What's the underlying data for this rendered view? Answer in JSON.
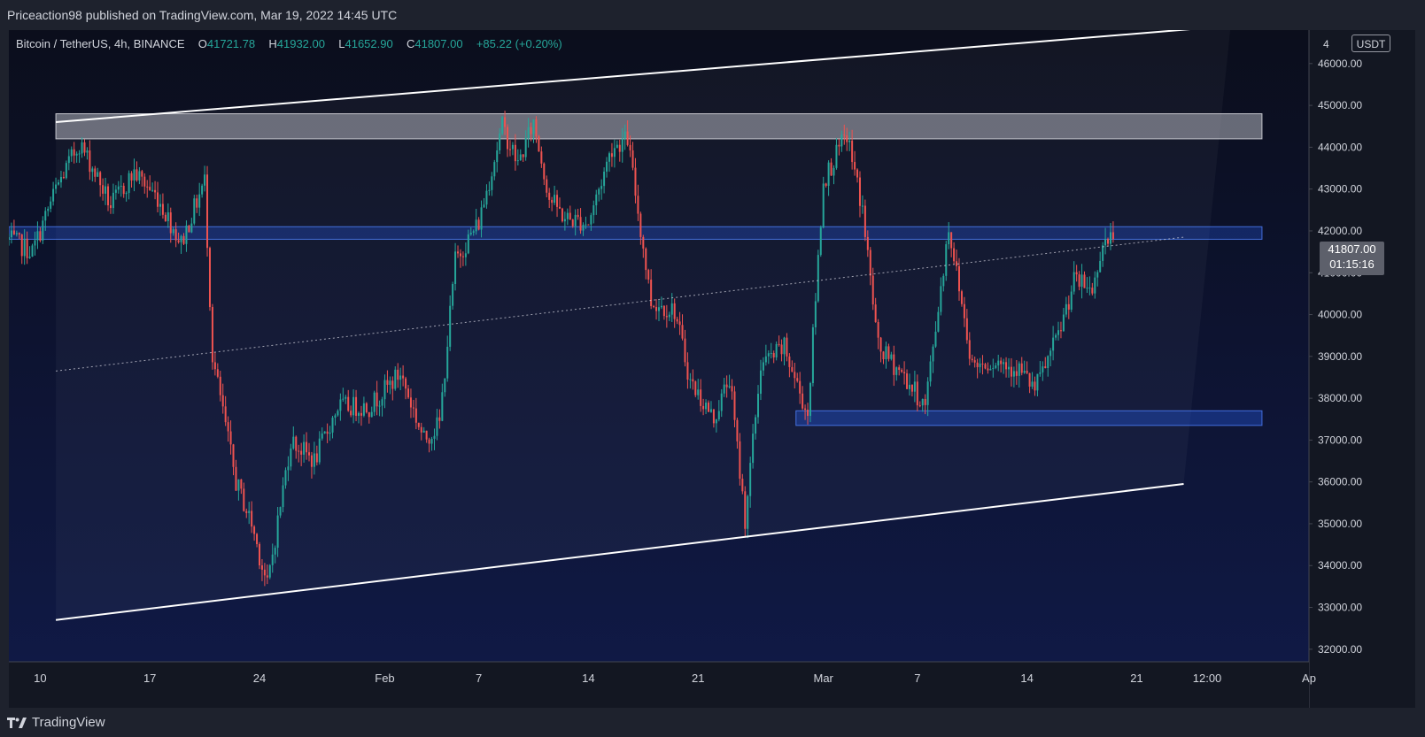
{
  "header": {
    "published_text": "Priceaction98 published on TradingView.com, Mar 19, 2022 14:45 UTC"
  },
  "legend": {
    "symbol": "Bitcoin / TetherUS, 4h, BINANCE",
    "open_label": "O",
    "open_value": "41721.78",
    "high_label": "H",
    "high_value": "41932.00",
    "low_label": "L",
    "low_value": "41652.90",
    "close_label": "C",
    "close_value": "41807.00",
    "change": "+85.22 (+0.20%)"
  },
  "price_axis": {
    "currency": "USDT",
    "ticks": [
      "46000.00",
      "45000.00",
      "44000.00",
      "43000.00",
      "42000.00",
      "41000.00",
      "40000.00",
      "39000.00",
      "38000.00",
      "37000.00",
      "36000.00",
      "35000.00",
      "34000.00",
      "33000.00",
      "32000.00"
    ],
    "top_clipped_tick": "4"
  },
  "last_price": {
    "value": "41807.00",
    "countdown": "01:15:16"
  },
  "time_axis": {
    "ticks": [
      "10",
      "17",
      "24",
      "Feb",
      "7",
      "14",
      "21",
      "Mar",
      "7",
      "14",
      "21",
      "12:00",
      "Ap"
    ]
  },
  "footer": {
    "brand": "TradingView"
  },
  "colors": {
    "bull": "#26a69a",
    "bear": "#ef5350",
    "resistance_zone": "#b2b5be",
    "support_zone": "#2962ff",
    "channel_line": "#ffffff",
    "background_top": "#0b0e1c",
    "background_bottom": "#101a48"
  },
  "chart_data": {
    "type": "candlestick",
    "symbol": "BTCUSDT",
    "interval": "4h",
    "ylim": [
      31700,
      46800
    ],
    "x_start": "2022-01-08",
    "x_end": "2022-04-01",
    "last_close": 41807.0,
    "path_anchors": [
      {
        "t": "2022-01-08 00:00",
        "price": 41800
      },
      {
        "t": "2022-01-09 12:00",
        "price": 41500
      },
      {
        "t": "2022-01-11 00:00",
        "price": 43000
      },
      {
        "t": "2022-01-12 12:00",
        "price": 44100
      },
      {
        "t": "2022-01-13 12:00",
        "price": 43400
      },
      {
        "t": "2022-01-14 12:00",
        "price": 42600
      },
      {
        "t": "2022-01-16 00:00",
        "price": 43400
      },
      {
        "t": "2022-01-17 12:00",
        "price": 42800
      },
      {
        "t": "2022-01-19 00:00",
        "price": 41700
      },
      {
        "t": "2022-01-20 12:00",
        "price": 43200
      },
      {
        "t": "2022-01-21 00:00",
        "price": 39000
      },
      {
        "t": "2022-01-22 12:00",
        "price": 36000
      },
      {
        "t": "2022-01-23 12:00",
        "price": 35000
      },
      {
        "t": "2022-01-24 12:00",
        "price": 33500
      },
      {
        "t": "2022-01-26 00:00",
        "price": 37000
      },
      {
        "t": "2022-01-27 12:00",
        "price": 36500
      },
      {
        "t": "2022-01-29 00:00",
        "price": 37800
      },
      {
        "t": "2022-01-31 00:00",
        "price": 37800
      },
      {
        "t": "2022-02-02 00:00",
        "price": 38600
      },
      {
        "t": "2022-02-03 12:00",
        "price": 37000
      },
      {
        "t": "2022-02-04 12:00",
        "price": 37400
      },
      {
        "t": "2022-02-05 12:00",
        "price": 41300
      },
      {
        "t": "2022-02-07 00:00",
        "price": 42200
      },
      {
        "t": "2022-02-08 12:00",
        "price": 44500
      },
      {
        "t": "2022-02-09 12:00",
        "price": 43600
      },
      {
        "t": "2022-02-10 12:00",
        "price": 44600
      },
      {
        "t": "2022-02-11 12:00",
        "price": 42800
      },
      {
        "t": "2022-02-12 12:00",
        "price": 42300
      },
      {
        "t": "2022-02-14 00:00",
        "price": 42200
      },
      {
        "t": "2022-02-15 12:00",
        "price": 44000
      },
      {
        "t": "2022-02-16 12:00",
        "price": 44200
      },
      {
        "t": "2022-02-18 00:00",
        "price": 40300
      },
      {
        "t": "2022-02-19 12:00",
        "price": 40100
      },
      {
        "t": "2022-02-20 12:00",
        "price": 38400
      },
      {
        "t": "2022-02-22 00:00",
        "price": 37500
      },
      {
        "t": "2022-02-23 00:00",
        "price": 38500
      },
      {
        "t": "2022-02-24 00:00",
        "price": 35100
      },
      {
        "t": "2022-02-25 00:00",
        "price": 38800
      },
      {
        "t": "2022-02-26 12:00",
        "price": 39200
      },
      {
        "t": "2022-02-28 00:00",
        "price": 37600
      },
      {
        "t": "2022-03-01 00:00",
        "price": 43200
      },
      {
        "t": "2022-03-02 12:00",
        "price": 44300
      },
      {
        "t": "2022-03-03 12:00",
        "price": 42500
      },
      {
        "t": "2022-03-04 12:00",
        "price": 39200
      },
      {
        "t": "2022-03-06 00:00",
        "price": 38600
      },
      {
        "t": "2022-03-07 12:00",
        "price": 37800
      },
      {
        "t": "2022-03-09 00:00",
        "price": 42100
      },
      {
        "t": "2022-03-10 12:00",
        "price": 38800
      },
      {
        "t": "2022-03-12 00:00",
        "price": 38900
      },
      {
        "t": "2022-03-13 12:00",
        "price": 38700
      },
      {
        "t": "2022-03-14 12:00",
        "price": 38200
      },
      {
        "t": "2022-03-16 00:00",
        "price": 39500
      },
      {
        "t": "2022-03-17 00:00",
        "price": 40800
      },
      {
        "t": "2022-03-18 06:00",
        "price": 40600
      },
      {
        "t": "2022-03-18 18:00",
        "price": 41700
      },
      {
        "t": "2022-03-19 14:00",
        "price": 41807
      }
    ],
    "drawings": {
      "ascending_channel_upper": [
        {
          "t": "2022-01-11 00:00",
          "price": 44600
        },
        {
          "t": "2022-03-27 00:00",
          "price": 46900
        }
      ],
      "ascending_channel_lower": [
        {
          "t": "2022-01-11 00:00",
          "price": 32700
        },
        {
          "t": "2022-03-24 00:00",
          "price": 35950
        }
      ],
      "channel_midline": [
        {
          "t": "2022-01-11 00:00",
          "price": 38650
        },
        {
          "t": "2022-03-24 00:00",
          "price": 41850
        }
      ],
      "resistance_zone": {
        "from": "2022-01-11 00:00",
        "to": "2022-03-29 00:00",
        "low": 44200,
        "high": 44800
      },
      "pivot_zone": {
        "from": "2022-01-08 00:00",
        "to": "2022-03-29 00:00",
        "low": 41800,
        "high": 42100
      },
      "support_zone": {
        "from": "2022-02-27 06:00",
        "to": "2022-03-29 00:00",
        "low": 37350,
        "high": 37700
      }
    }
  }
}
